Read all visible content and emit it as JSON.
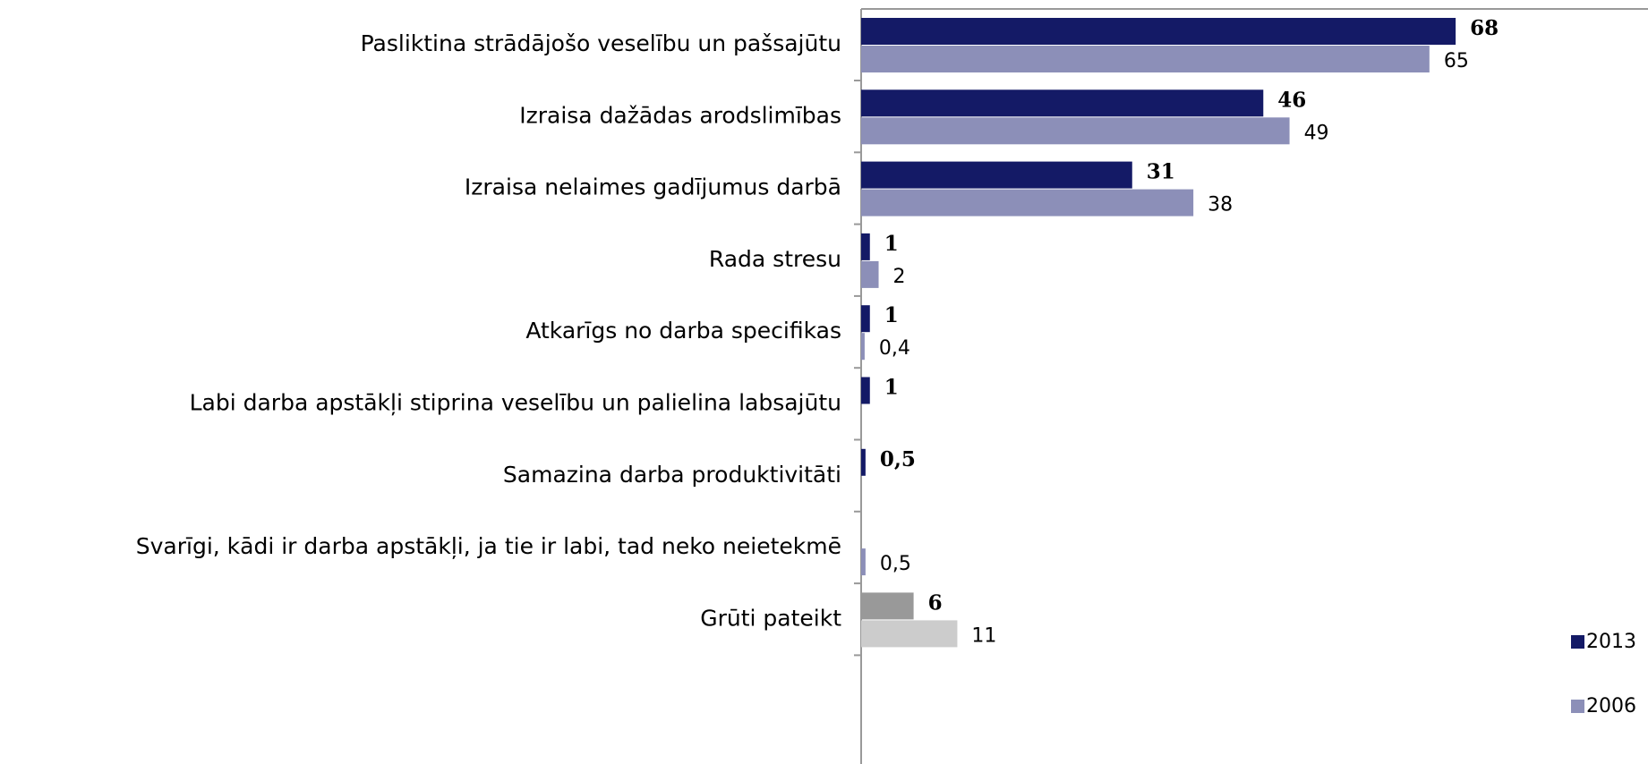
{
  "chart_data": {
    "type": "bar",
    "orientation": "horizontal",
    "categories": [
      "Pasliktina strādājošo veselību un pašsajūtu",
      "Izraisa dažādas arodslimības",
      "Izraisa nelaimes gadījumus darbā",
      "Rada stresu",
      "Atkarīgs no darba specifikas",
      "Labi darba apstākļi stiprina veselību un palielina labsajūtu",
      "Samazina darba produktivitāti",
      "Svarīgi, kādi ir darba apstākļi, ja tie ir labi, tad neko neietekmē",
      "Grūti pateikt"
    ],
    "series": [
      {
        "name": "2013",
        "color": "#141a66",
        "colors": [
          "#141a66",
          "#141a66",
          "#141a66",
          "#141a66",
          "#141a66",
          "#141a66",
          "#141a66",
          "#141a66",
          "#999999"
        ],
        "values": [
          68,
          46,
          31,
          1,
          1,
          1,
          0.5,
          null,
          6
        ],
        "value_labels": [
          "68",
          "46",
          "31",
          "1",
          "1",
          "1",
          "0,5",
          null,
          "6"
        ]
      },
      {
        "name": "2006",
        "color": "#8c8fb8",
        "colors": [
          "#8c8fb8",
          "#8c8fb8",
          "#8c8fb8",
          "#8c8fb8",
          "#8c8fb8",
          "#8c8fb8",
          "#8c8fb8",
          "#8c8fb8",
          "#cccccc"
        ],
        "values": [
          65,
          49,
          38,
          2,
          0.4,
          null,
          null,
          0.5,
          11
        ],
        "value_labels": [
          "65",
          "49",
          "38",
          "2",
          "0,4",
          null,
          null,
          "0,5",
          "11"
        ]
      }
    ],
    "xlim": [
      0,
      90
    ],
    "legend": "right"
  }
}
